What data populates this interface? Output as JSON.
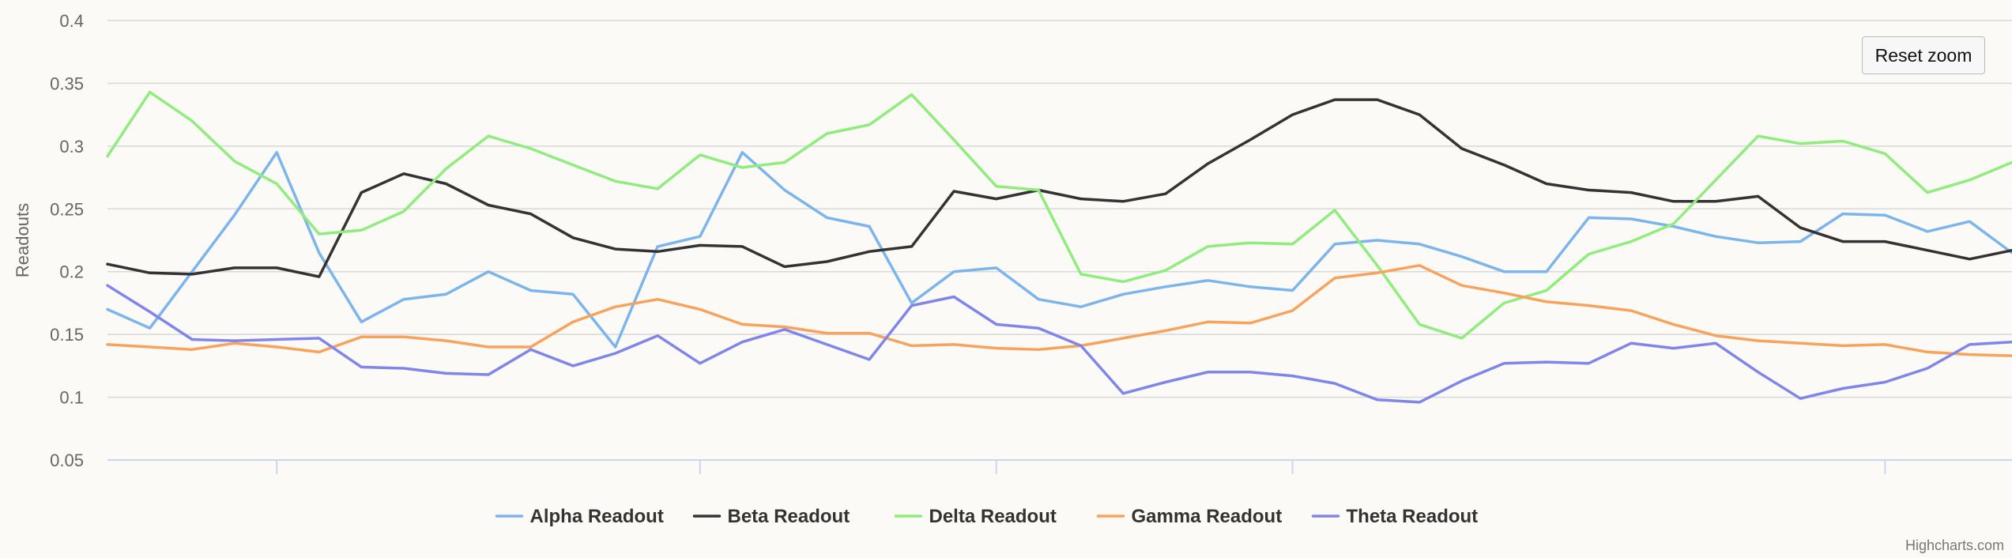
{
  "reset_zoom_label": "Reset zoom",
  "credits": "Highcharts.com",
  "chart_data": {
    "type": "line",
    "ylabel": "Readouts",
    "xlabel": "",
    "ylim": [
      0.05,
      0.4
    ],
    "y_ticks": [
      0.05,
      0.1,
      0.15,
      0.2,
      0.25,
      0.3,
      0.35,
      0.4
    ],
    "y_tick_labels": [
      "0.05",
      "0.1",
      "0.15",
      "0.2",
      "0.25",
      "0.3",
      "0.35",
      "0.4"
    ],
    "x_ticks": [
      4,
      14,
      21,
      28,
      42
    ],
    "grid": true,
    "legend_position": "bottom-center",
    "x": [
      0,
      1,
      2,
      3,
      4,
      5,
      6,
      7,
      8,
      9,
      10,
      11,
      12,
      13,
      14,
      15,
      16,
      17,
      18,
      19,
      20,
      21,
      22,
      23,
      24,
      25,
      26,
      27,
      28,
      29,
      30,
      31,
      32,
      33,
      34,
      35,
      36,
      37,
      38,
      39,
      40,
      41,
      42,
      43,
      44,
      45
    ],
    "series": [
      {
        "name": "Alpha Readout",
        "color": "#7cb5ec",
        "values": [
          0.17,
          0.155,
          0.2,
          0.245,
          0.295,
          0.215,
          0.16,
          0.178,
          0.182,
          0.2,
          0.185,
          0.182,
          0.14,
          0.22,
          0.228,
          0.295,
          0.265,
          0.243,
          0.236,
          0.175,
          0.2,
          0.203,
          0.178,
          0.172,
          0.182,
          0.188,
          0.193,
          0.188,
          0.185,
          0.222,
          0.225,
          0.222,
          0.212,
          0.2,
          0.2,
          0.243,
          0.242,
          0.236,
          0.228,
          0.223,
          0.224,
          0.246,
          0.245,
          0.232,
          0.24,
          0.215
        ]
      },
      {
        "name": "Beta Readout",
        "color": "#333333",
        "values": [
          0.206,
          0.199,
          0.198,
          0.203,
          0.203,
          0.196,
          0.263,
          0.278,
          0.27,
          0.253,
          0.246,
          0.227,
          0.218,
          0.216,
          0.221,
          0.22,
          0.204,
          0.208,
          0.216,
          0.22,
          0.264,
          0.258,
          0.265,
          0.258,
          0.256,
          0.262,
          0.286,
          0.305,
          0.325,
          0.337,
          0.337,
          0.325,
          0.298,
          0.285,
          0.27,
          0.265,
          0.263,
          0.256,
          0.256,
          0.26,
          0.235,
          0.224,
          0.224,
          0.217,
          0.21,
          0.217
        ]
      },
      {
        "name": "Delta Readout",
        "color": "#90ed7d",
        "values": [
          0.292,
          0.343,
          0.32,
          0.288,
          0.27,
          0.23,
          0.233,
          0.248,
          0.282,
          0.308,
          0.298,
          0.285,
          0.272,
          0.266,
          0.293,
          0.283,
          0.287,
          0.31,
          0.317,
          0.341,
          0.305,
          0.268,
          0.265,
          0.198,
          0.192,
          0.201,
          0.22,
          0.223,
          0.222,
          0.249,
          0.205,
          0.158,
          0.147,
          0.175,
          0.185,
          0.214,
          0.224,
          0.238,
          0.273,
          0.308,
          0.302,
          0.304,
          0.294,
          0.263,
          0.273,
          0.287
        ]
      },
      {
        "name": "Gamma Readout",
        "color": "#f7a35c",
        "values": [
          0.142,
          0.14,
          0.138,
          0.143,
          0.14,
          0.136,
          0.148,
          0.148,
          0.145,
          0.14,
          0.14,
          0.16,
          0.172,
          0.178,
          0.17,
          0.158,
          0.156,
          0.151,
          0.151,
          0.141,
          0.142,
          0.139,
          0.138,
          0.141,
          0.147,
          0.153,
          0.16,
          0.159,
          0.169,
          0.195,
          0.199,
          0.205,
          0.189,
          0.183,
          0.176,
          0.173,
          0.169,
          0.158,
          0.149,
          0.145,
          0.143,
          0.141,
          0.142,
          0.136,
          0.134,
          0.133
        ]
      },
      {
        "name": "Theta Readout",
        "color": "#8085e9",
        "values": [
          0.189,
          0.168,
          0.146,
          0.145,
          0.146,
          0.147,
          0.124,
          0.123,
          0.119,
          0.118,
          0.138,
          0.125,
          0.135,
          0.149,
          0.127,
          0.144,
          0.154,
          0.142,
          0.13,
          0.173,
          0.18,
          0.158,
          0.155,
          0.141,
          0.103,
          0.112,
          0.12,
          0.12,
          0.117,
          0.111,
          0.098,
          0.096,
          0.113,
          0.127,
          0.128,
          0.127,
          0.143,
          0.139,
          0.143,
          0.12,
          0.099,
          0.107,
          0.112,
          0.123,
          0.142,
          0.144
        ]
      }
    ]
  }
}
